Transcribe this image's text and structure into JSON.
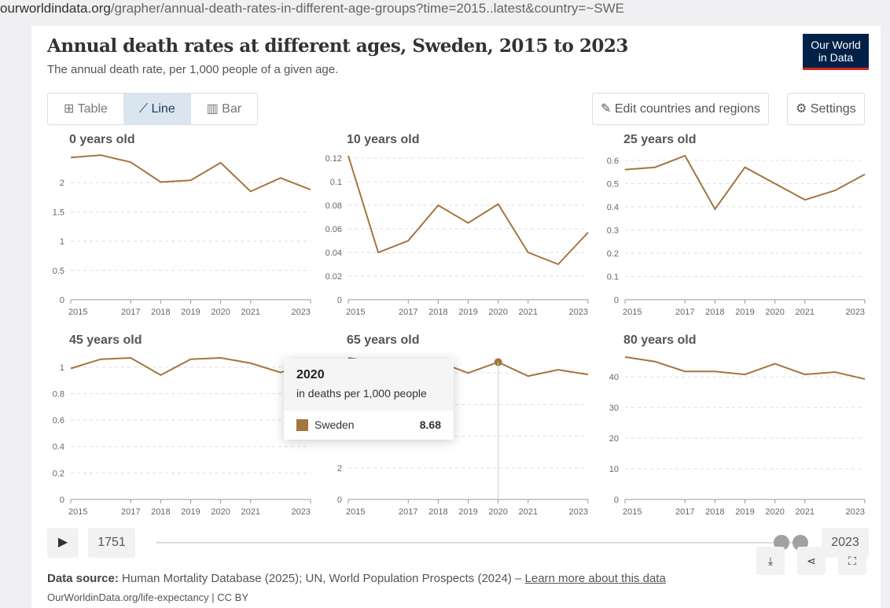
{
  "url": {
    "domain": "ourworldindata.org",
    "path": "/grapher/annual-death-rates-in-different-age-groups?time=2015..latest&country=~SWE"
  },
  "header": {
    "title": "Annual death rates at different ages, Sweden, 2015 to 2023",
    "subtitle": "The annual death rate, per 1,000 people of a given age.",
    "logo": "Our World in Data"
  },
  "tabs": [
    {
      "label": "Table",
      "icon": "table-icon"
    },
    {
      "label": "Line",
      "icon": "line-chart-icon"
    },
    {
      "label": "Bar",
      "icon": "bar-chart-icon"
    }
  ],
  "toolbar": {
    "edit": "Edit countries and regions",
    "settings": "Settings"
  },
  "tooltip": {
    "year": "2020",
    "unit": "in deaths per 1,000 people",
    "entity": "Sweden",
    "value": "8.68",
    "color": "#a2763e"
  },
  "timeline": {
    "start": "1751",
    "end": "2023"
  },
  "footer": {
    "source_label": "Data source:",
    "source": "Human Mortality Database (2025); UN, World Population Prospects (2024) –",
    "learn_more": "Learn more about this data",
    "credit": "OurWorldinData.org/life-expectancy | CC BY"
  },
  "chart_data": [
    {
      "type": "line",
      "title": "0 years old",
      "x": [
        2015,
        2016,
        2017,
        2018,
        2019,
        2020,
        2021,
        2022,
        2023
      ],
      "values": [
        2.43,
        2.47,
        2.35,
        2.01,
        2.04,
        2.34,
        1.85,
        2.08,
        1.88
      ],
      "yticks": [
        0,
        0.5,
        1,
        1.5,
        2
      ],
      "yticklabels": [
        "0",
        "0.5",
        "1",
        "1.5",
        "2"
      ],
      "ylim": [
        0,
        2.5
      ],
      "series_color": "#a2763e"
    },
    {
      "type": "line",
      "title": "10 years old",
      "x": [
        2015,
        2016,
        2017,
        2018,
        2019,
        2020,
        2021,
        2022,
        2023
      ],
      "values": [
        0.122,
        0.04,
        0.05,
        0.08,
        0.065,
        0.081,
        0.04,
        0.03,
        0.057
      ],
      "yticks": [
        0,
        0.02,
        0.04,
        0.06,
        0.08,
        0.1,
        0.12
      ],
      "yticklabels": [
        "0",
        "0.02",
        "0.04",
        "0.06",
        "0.08",
        "0.1",
        "0.12"
      ],
      "ylim": [
        0,
        0.124
      ],
      "series_color": "#a2763e"
    },
    {
      "type": "line",
      "title": "25 years old",
      "x": [
        2015,
        2016,
        2017,
        2018,
        2019,
        2020,
        2021,
        2022,
        2023
      ],
      "values": [
        0.56,
        0.57,
        0.62,
        0.39,
        0.57,
        0.5,
        0.43,
        0.47,
        0.54
      ],
      "yticks": [
        0,
        0.1,
        0.2,
        0.3,
        0.4,
        0.5,
        0.6
      ],
      "yticklabels": [
        "0",
        "0.1",
        "0.2",
        "0.3",
        "0.4",
        "0.5",
        "0.6"
      ],
      "ylim": [
        0,
        0.63
      ],
      "series_color": "#a2763e"
    },
    {
      "type": "line",
      "title": "45 years old",
      "x": [
        2015,
        2016,
        2017,
        2018,
        2019,
        2020,
        2021,
        2022,
        2023
      ],
      "values": [
        0.99,
        1.06,
        1.07,
        0.94,
        1.06,
        1.07,
        1.03,
        0.96,
        1.04
      ],
      "yticks": [
        0,
        0.2,
        0.4,
        0.6,
        0.8,
        1
      ],
      "yticklabels": [
        "0",
        "0.2",
        "0.4",
        "0.6",
        "0.8",
        "1"
      ],
      "ylim": [
        0,
        1.1
      ],
      "series_color": "#a2763e"
    },
    {
      "type": "line",
      "title": "65 years old",
      "x": [
        2015,
        2016,
        2017,
        2018,
        2019,
        2020,
        2021,
        2022,
        2023
      ],
      "values": [
        8.95,
        8.65,
        8.35,
        8.7,
        8.0,
        8.68,
        7.8,
        8.2,
        7.9
      ],
      "yticks": [
        0,
        2,
        4,
        6,
        8
      ],
      "yticklabels": [
        "0",
        "2",
        "4",
        "6",
        "8"
      ],
      "ylim": [
        0,
        9.2
      ],
      "highlight": 2020,
      "series_color": "#a2763e"
    },
    {
      "type": "line",
      "title": "80 years old",
      "x": [
        2015,
        2016,
        2017,
        2018,
        2019,
        2020,
        2021,
        2022,
        2023
      ],
      "values": [
        46.5,
        45,
        41.8,
        41.8,
        40.8,
        44.3,
        40.8,
        41.6,
        39.3
      ],
      "yticks": [
        0,
        10,
        20,
        30,
        40
      ],
      "yticklabels": [
        "0",
        "10",
        "20",
        "30",
        "40"
      ],
      "ylim": [
        0,
        47.5
      ],
      "series_color": "#a2763e"
    }
  ],
  "xticks": [
    "2015",
    "2017",
    "2018",
    "2019",
    "2020",
    "2021",
    "2023"
  ]
}
